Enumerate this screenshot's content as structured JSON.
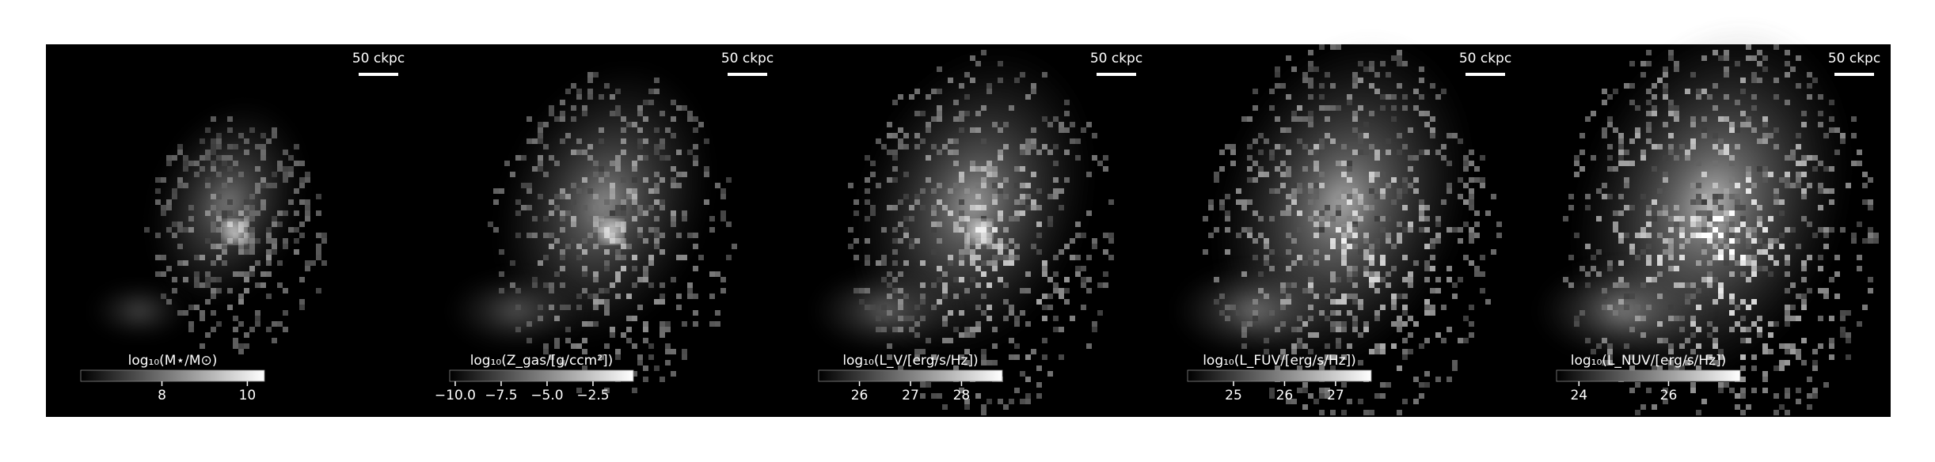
{
  "chart_data": [
    {
      "type": "image-map",
      "scale_bar": "50 ckpc",
      "colorbar_label": "log₁₀(M⋆/M⊙)",
      "clim": [
        6.1,
        10.4
      ],
      "cticks": [
        8,
        10
      ]
    },
    {
      "type": "image-map",
      "scale_bar": "50 ckpc",
      "colorbar_label": "log₁₀(Z_gas/[g/ccm²])",
      "clim": [
        -10.3,
        -0.3
      ],
      "cticks": [
        {
          "value": -10,
          "label": "−10.0"
        },
        {
          "value": -7.5,
          "label": "−7.5"
        },
        {
          "value": -5,
          "label": "−5.0"
        },
        {
          "value": -2.5,
          "label": "−2.5"
        }
      ]
    },
    {
      "type": "image-map",
      "scale_bar": "50 ckpc",
      "colorbar_label": "log₁₀(L_V/[erg/s/Hz])",
      "clim": [
        25.2,
        28.8
      ],
      "cticks": [
        26,
        27,
        28
      ]
    },
    {
      "type": "image-map",
      "scale_bar": "50 ckpc",
      "colorbar_label": "log₁₀(L_FUV/[erg/s/Hz])",
      "clim": [
        24.1,
        27.7
      ],
      "cticks": [
        25,
        26,
        27
      ]
    },
    {
      "type": "image-map",
      "scale_bar": "50 ckpc",
      "colorbar_label": "log₁₀(L_NUV/[erg/s/Hz])",
      "clim": [
        23.5,
        27.6
      ],
      "cticks": [
        24,
        26
      ]
    }
  ]
}
